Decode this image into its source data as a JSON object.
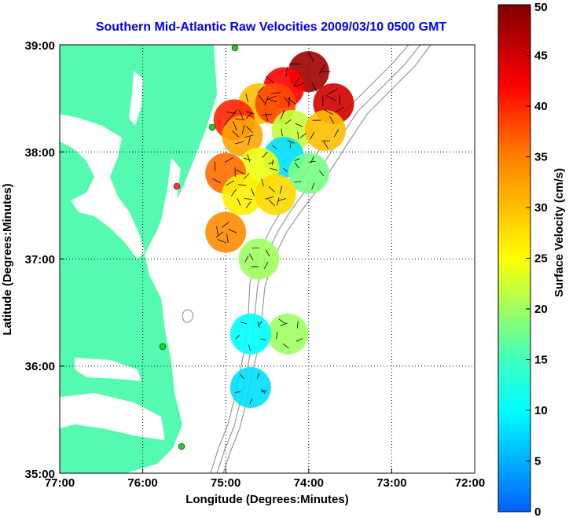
{
  "chart_data": {
    "type": "heatmap",
    "title": "Southern Mid-Atlantic Raw Velocities 2009/03/10 0500 GMT",
    "xlabel": "Longitude (Degrees:Minutes)",
    "ylabel": "Latitude (Degrees:Minutes)",
    "x_ticks": [
      "77:00",
      "76:00",
      "75:00",
      "74:00",
      "73:00",
      "72:00"
    ],
    "y_ticks": [
      "39:00",
      "38:00",
      "37:00",
      "36:00",
      "35:00"
    ],
    "xlim": [
      -77,
      -72
    ],
    "ylim": [
      35,
      39
    ],
    "grid": true,
    "colorbar": {
      "label": "Surface Velocity (cm/s)",
      "ticks": [
        "0",
        "5",
        "10",
        "15",
        "20",
        "25",
        "30",
        "35",
        "40",
        "45",
        "50"
      ],
      "range": [
        0,
        50
      ]
    },
    "land_color": "#54fab0",
    "station_color": "#22cc22",
    "velocity_cells": [
      {
        "lon": -74.0,
        "lat": 38.75,
        "speed": 48
      },
      {
        "lon": -74.3,
        "lat": 38.6,
        "speed": 42
      },
      {
        "lon": -74.6,
        "lat": 38.45,
        "speed": 30
      },
      {
        "lon": -74.4,
        "lat": 38.45,
        "speed": 38
      },
      {
        "lon": -73.7,
        "lat": 38.45,
        "speed": 45
      },
      {
        "lon": -74.9,
        "lat": 38.3,
        "speed": 40
      },
      {
        "lon": -74.8,
        "lat": 38.15,
        "speed": 32
      },
      {
        "lon": -74.2,
        "lat": 38.2,
        "speed": 22
      },
      {
        "lon": -73.8,
        "lat": 38.2,
        "speed": 30
      },
      {
        "lon": -74.3,
        "lat": 37.95,
        "speed": 8
      },
      {
        "lon": -74.6,
        "lat": 37.85,
        "speed": 24
      },
      {
        "lon": -74.0,
        "lat": 37.8,
        "speed": 18
      },
      {
        "lon": -75.0,
        "lat": 37.8,
        "speed": 36
      },
      {
        "lon": -74.8,
        "lat": 37.6,
        "speed": 26
      },
      {
        "lon": -74.4,
        "lat": 37.6,
        "speed": 28
      },
      {
        "lon": -75.0,
        "lat": 37.25,
        "speed": 34
      },
      {
        "lon": -74.6,
        "lat": 37.0,
        "speed": 20
      },
      {
        "lon": -74.25,
        "lat": 36.3,
        "speed": 20
      },
      {
        "lon": -74.7,
        "lat": 36.3,
        "speed": 10
      },
      {
        "lon": -74.7,
        "lat": 35.8,
        "speed": 8
      }
    ]
  }
}
